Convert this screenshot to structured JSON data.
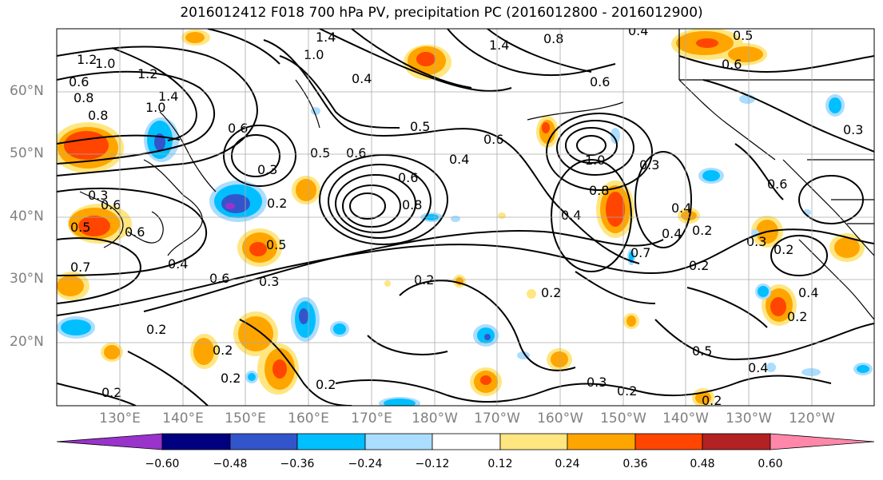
{
  "title": "2016012412 F018 700 hPa PV, precipitation PC (2016012800 - 2016012900)",
  "lat_labels": [
    "60°N",
    "50°N",
    "40°N",
    "30°N",
    "20°N"
  ],
  "lon_labels": [
    "130°E",
    "140°E",
    "150°E",
    "160°E",
    "170°E",
    "180°W",
    "170°W",
    "160°W",
    "150°W",
    "140°W",
    "130°W",
    "120°W"
  ],
  "colorbar": {
    "ticks": [
      "−0.60",
      "−0.48",
      "−0.36",
      "−0.24",
      "−0.12",
      "0.12",
      "0.24",
      "0.36",
      "0.48",
      "0.60"
    ],
    "colors": [
      "#9933cc",
      "#000080",
      "#3355cc",
      "#00bfff",
      "#aaddff",
      "#ffffff",
      "#ffe680",
      "#ffa500",
      "#ff4500",
      "#b22222",
      "#ff88aa"
    ]
  },
  "contour_labels": [
    "1.4",
    "1.2",
    "1.0",
    "0.6",
    "0.8",
    "0.8",
    "1.2",
    "1.4",
    "1.0",
    "1.0",
    "0.4",
    "1.4",
    "0.8",
    "0.4",
    "0.5",
    "0.6",
    "0.6",
    "0.5",
    "0.6",
    "0.3",
    "0.4",
    "0.6",
    "0.6",
    "0.8",
    "0.6",
    "0.3",
    "0.2",
    "0.5",
    "0.5",
    "0.6",
    "0.4",
    "0.7",
    "0.6",
    "0.3",
    "0.2",
    "0.2",
    "0.2",
    "0.2",
    "0.2",
    "0.2",
    "0.2",
    "0.8",
    "1.0",
    "0.4",
    "0.3",
    "0.4",
    "0.2",
    "0.4",
    "0.7",
    "0.2",
    "0.4",
    "0.2",
    "0.2",
    "0.5",
    "0.3",
    "0.2",
    "0.4",
    "0.3",
    "0.6",
    "0.3",
    "0.6",
    "0.5",
    "0.2"
  ]
}
